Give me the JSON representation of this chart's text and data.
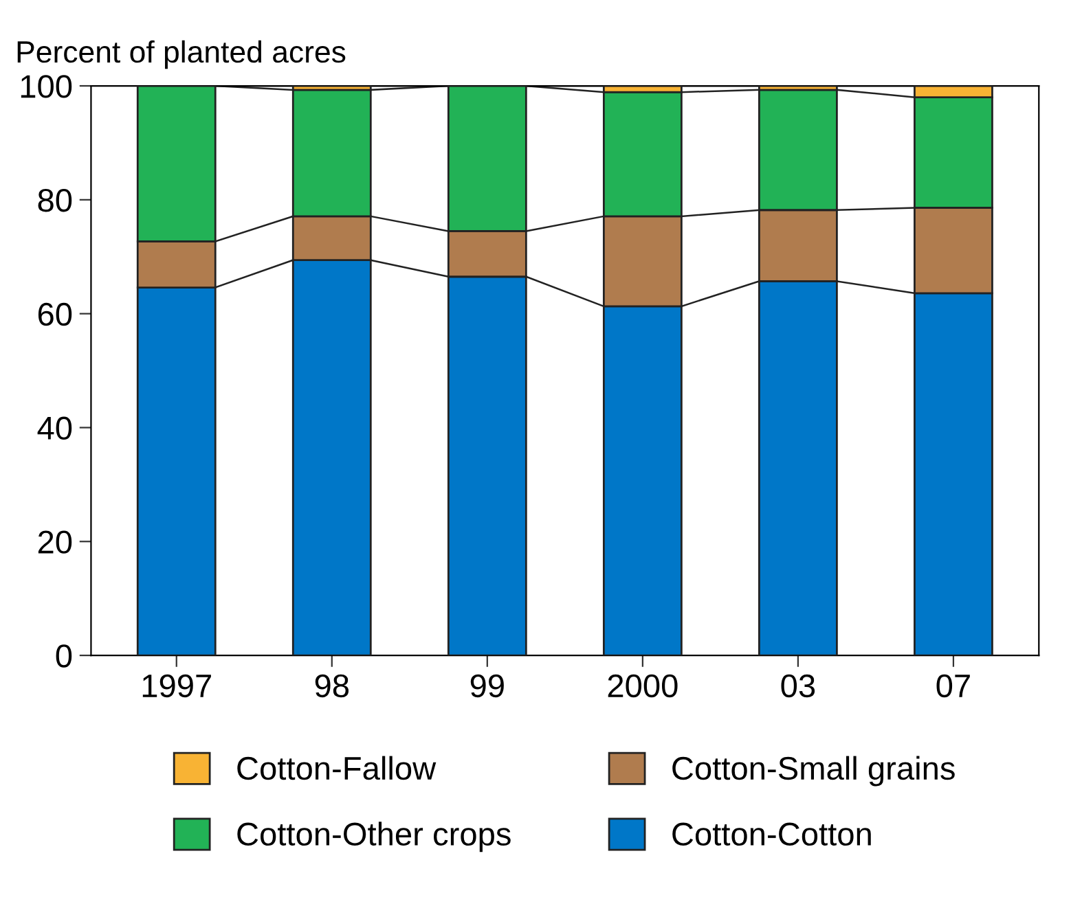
{
  "chart_data": {
    "type": "bar",
    "stacked": true,
    "ylabel": "Percent of planted acres",
    "categories": [
      "1997",
      "98",
      "99",
      "2000",
      "03",
      "07"
    ],
    "series": [
      {
        "name": "Cotton-Cotton",
        "color": "#0077c8",
        "values": [
          64.6,
          69.4,
          66.5,
          61.3,
          65.7,
          63.6
        ]
      },
      {
        "name": "Cotton-Small grains",
        "color": "#b07c4e",
        "values": [
          8.1,
          7.7,
          8.0,
          15.8,
          12.5,
          15.0
        ]
      },
      {
        "name": "Cotton-Other crops",
        "color": "#22b256",
        "values": [
          27.3,
          22.2,
          25.5,
          21.8,
          21.1,
          19.4
        ]
      },
      {
        "name": "Cotton-Fallow",
        "color": "#f8b334",
        "values": [
          null,
          0.7,
          null,
          1.1,
          0.7,
          2.0
        ]
      }
    ],
    "ylim": [
      0,
      100
    ],
    "yticks": [
      0,
      20,
      40,
      60,
      80,
      100
    ],
    "grid": false,
    "legend": "bottom"
  }
}
